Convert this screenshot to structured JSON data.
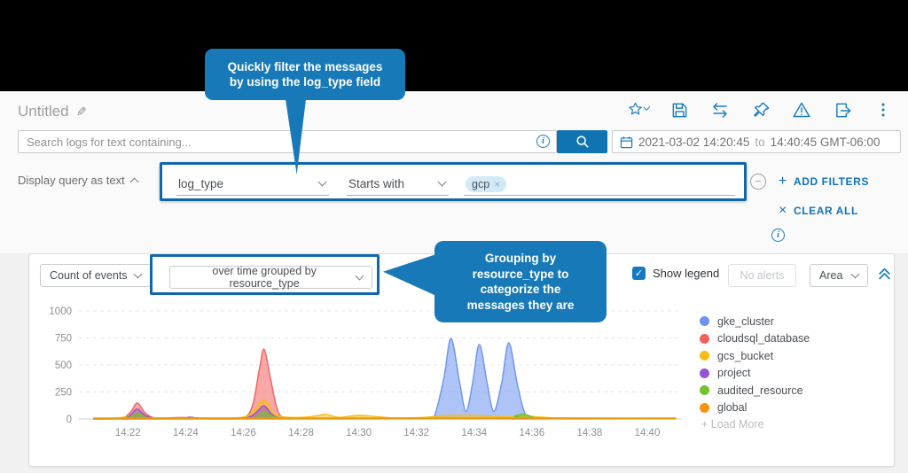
{
  "app": {
    "title": "Untitled"
  },
  "toolbar": {
    "icons": [
      "favorite",
      "save",
      "compare",
      "pin",
      "alerts",
      "export",
      "more-options"
    ]
  },
  "icons": {
    "plus": "+",
    "close": "×",
    "minus": "−",
    "info": "i",
    "pencil": "✎",
    "check": "✓"
  },
  "search": {
    "placeholder": "Search logs for text containing..."
  },
  "time_range": {
    "start": "2021-03-02 14:20:45",
    "separator": "to",
    "end": "14:40:45 GMT-06:00"
  },
  "query": {
    "display_toggle": "Display query as text",
    "field": "log_type",
    "operator": "Starts with",
    "value_chip": "gcp",
    "add_filters": "ADD FILTERS",
    "clear_all": "CLEAR ALL"
  },
  "callouts": {
    "filter_tip": "Quickly filter the messages by using the log_type field",
    "grouping_tip": "Grouping by resource_type to categorize the messages they are"
  },
  "chart_panel": {
    "metric": "Count of events",
    "group_by": "over time grouped by resource_type",
    "show_legend": "Show legend",
    "no_alerts": "No alerts",
    "chart_type": "Area",
    "load_more": "+ Load More"
  },
  "chart_data": {
    "type": "area",
    "title": "Count of events over time grouped by resource_type",
    "x_axis": {
      "base_time": "14:20",
      "ticks": [
        "14:22",
        "14:24",
        "14:26",
        "14:28",
        "14:30",
        "14:32",
        "14:34",
        "14:36",
        "14:38",
        "14:40"
      ],
      "tick_minutes": [
        2,
        4,
        6,
        8,
        10,
        12,
        14,
        16,
        18,
        20
      ],
      "range_minutes": [
        0.3,
        21.2
      ]
    },
    "y_axis": {
      "ticks": [
        0,
        250,
        500,
        750,
        1000
      ],
      "range": [
        0,
        1000
      ],
      "gridlines": "dashed"
    },
    "legend_position": "right",
    "legend_order": [
      "gke_cluster",
      "cloudsql_database",
      "gcs_bucket",
      "project",
      "audited_resource",
      "global"
    ],
    "draw_order": [
      "cloudsql_database",
      "gke_cluster",
      "gcs_bucket",
      "project",
      "audited_resource",
      "global"
    ],
    "series": [
      {
        "name": "gke_cluster",
        "color": "#6d93ee",
        "points": [
          [
            0.8,
            0
          ],
          [
            12.2,
            2
          ],
          [
            12.6,
            15
          ],
          [
            12.95,
            380
          ],
          [
            13.2,
            745
          ],
          [
            13.5,
            330
          ],
          [
            13.72,
            70
          ],
          [
            13.95,
            340
          ],
          [
            14.18,
            690
          ],
          [
            14.45,
            330
          ],
          [
            14.68,
            70
          ],
          [
            14.95,
            330
          ],
          [
            15.2,
            705
          ],
          [
            15.5,
            320
          ],
          [
            15.78,
            40
          ],
          [
            16.15,
            6
          ],
          [
            17,
            2
          ],
          [
            21,
            2
          ]
        ]
      },
      {
        "name": "cloudsql_database",
        "color": "#f3605c",
        "points": [
          [
            0.8,
            2
          ],
          [
            1.75,
            5
          ],
          [
            2.1,
            70
          ],
          [
            2.33,
            148
          ],
          [
            2.6,
            55
          ],
          [
            2.95,
            8
          ],
          [
            3.6,
            12
          ],
          [
            3.9,
            14
          ],
          [
            4.3,
            10
          ],
          [
            5.2,
            4
          ],
          [
            5.95,
            6
          ],
          [
            6.3,
            110
          ],
          [
            6.55,
            450
          ],
          [
            6.72,
            645
          ],
          [
            6.95,
            360
          ],
          [
            7.2,
            70
          ],
          [
            7.5,
            12
          ],
          [
            8.2,
            4
          ],
          [
            21,
            3
          ]
        ]
      },
      {
        "name": "gcs_bucket",
        "color": "#f8bd17",
        "points": [
          [
            0.8,
            7
          ],
          [
            1.6,
            10
          ],
          [
            2.1,
            28
          ],
          [
            2.33,
            46
          ],
          [
            2.7,
            14
          ],
          [
            3.4,
            9
          ],
          [
            4.3,
            8
          ],
          [
            5.9,
            14
          ],
          [
            6.35,
            75
          ],
          [
            6.72,
            178
          ],
          [
            7.0,
            70
          ],
          [
            7.35,
            20
          ],
          [
            8.0,
            15
          ],
          [
            8.5,
            28
          ],
          [
            8.85,
            42
          ],
          [
            9.3,
            16
          ],
          [
            9.75,
            28
          ],
          [
            10.15,
            34
          ],
          [
            10.6,
            22
          ],
          [
            11.2,
            10
          ],
          [
            12.2,
            14
          ],
          [
            12.8,
            28
          ],
          [
            13.4,
            34
          ],
          [
            14.0,
            32
          ],
          [
            14.6,
            26
          ],
          [
            15.1,
            20
          ],
          [
            15.6,
            28
          ],
          [
            16.0,
            24
          ],
          [
            16.6,
            12
          ],
          [
            17.5,
            8
          ],
          [
            21,
            8
          ]
        ]
      },
      {
        "name": "project",
        "color": "#9552d3",
        "points": [
          [
            0.8,
            1
          ],
          [
            1.85,
            4
          ],
          [
            2.15,
            55
          ],
          [
            2.33,
            92
          ],
          [
            2.6,
            32
          ],
          [
            2.95,
            6
          ],
          [
            3.85,
            6
          ],
          [
            4.15,
            16
          ],
          [
            4.5,
            6
          ],
          [
            5.3,
            3
          ],
          [
            6.15,
            14
          ],
          [
            6.5,
            75
          ],
          [
            6.72,
            122
          ],
          [
            7.0,
            42
          ],
          [
            7.3,
            8
          ],
          [
            8.1,
            3
          ],
          [
            21,
            2
          ]
        ]
      },
      {
        "name": "audited_resource",
        "color": "#74c22f",
        "points": [
          [
            0.8,
            1
          ],
          [
            1.9,
            4
          ],
          [
            2.18,
            32
          ],
          [
            2.33,
            56
          ],
          [
            2.6,
            18
          ],
          [
            2.95,
            4
          ],
          [
            6.2,
            10
          ],
          [
            6.55,
            42
          ],
          [
            6.75,
            62
          ],
          [
            7.05,
            22
          ],
          [
            7.4,
            5
          ],
          [
            8.1,
            2
          ],
          [
            14.9,
            3
          ],
          [
            15.4,
            28
          ],
          [
            15.72,
            46
          ],
          [
            16.05,
            16
          ],
          [
            16.45,
            4
          ],
          [
            21,
            2
          ]
        ]
      },
      {
        "name": "global",
        "color": "#f7940d",
        "points": [
          [
            0.8,
            7
          ],
          [
            3,
            8
          ],
          [
            6,
            8
          ],
          [
            9,
            8
          ],
          [
            12,
            8
          ],
          [
            15,
            8
          ],
          [
            18,
            8
          ],
          [
            21,
            7
          ]
        ]
      }
    ]
  }
}
